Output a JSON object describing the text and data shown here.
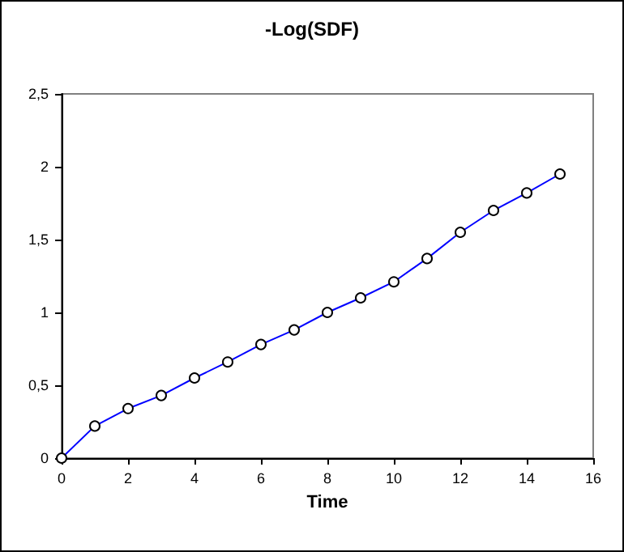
{
  "chart_data": {
    "type": "line",
    "title": "-Log(SDF)",
    "xlabel": "Time",
    "x": [
      0,
      1,
      2,
      3,
      4,
      5,
      6,
      7,
      8,
      9,
      10,
      11,
      12,
      13,
      14,
      15
    ],
    "series": [
      {
        "color": "#0000ff",
        "values": [
          0,
          0.22,
          0.34,
          0.43,
          0.55,
          0.66,
          0.78,
          0.88,
          1.0,
          1.1,
          1.21,
          1.37,
          1.55,
          1.7,
          1.82,
          1.95
        ]
      }
    ],
    "xlim": [
      0,
      16
    ],
    "xticks": [
      0,
      2,
      4,
      6,
      8,
      10,
      12,
      14,
      16
    ],
    "ylim": [
      0,
      2.5
    ],
    "yticks": [
      0,
      {
        "value": 0.5,
        "label": "0,5"
      },
      1,
      {
        "value": 1.5,
        "label": "1,5"
      },
      2,
      {
        "value": 2.5,
        "label": "2,5"
      }
    ],
    "grid": false,
    "marker": "circle",
    "line_style": "solid"
  }
}
